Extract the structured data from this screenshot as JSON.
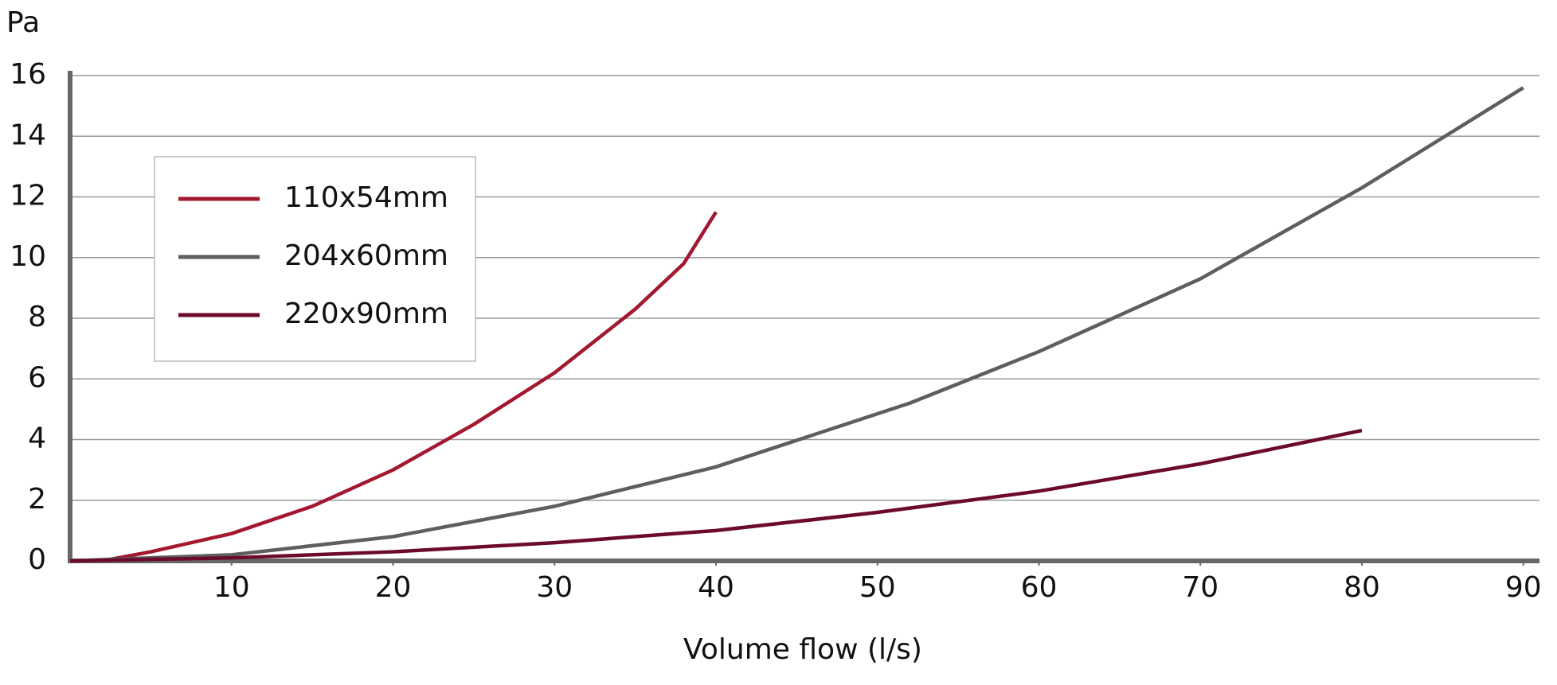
{
  "chart_data": {
    "type": "line",
    "y_label": "Pa",
    "x_label": "Volume flow (l/s)",
    "xlim": [
      0,
      91
    ],
    "ylim": [
      0,
      16
    ],
    "xticks": [
      10,
      20,
      30,
      40,
      50,
      60,
      70,
      80,
      90
    ],
    "yticks": [
      0,
      2,
      4,
      6,
      8,
      10,
      12,
      14,
      16
    ],
    "grid": true,
    "legend": "upper left",
    "series": [
      {
        "name": "110x54mm",
        "color": "#a3182f",
        "x": [
          2,
          5,
          10,
          15,
          20,
          25,
          30,
          35,
          38,
          40
        ],
        "values": [
          0,
          0.3,
          0.9,
          1.8,
          3.0,
          4.5,
          6.2,
          8.3,
          9.8,
          11.5
        ]
      },
      {
        "name": "204x60mm",
        "color": "#5e5e5e",
        "x": [
          0,
          10,
          20,
          30,
          40,
          52,
          60,
          70,
          80,
          90
        ],
        "values": [
          0,
          0.2,
          0.8,
          1.8,
          3.1,
          5.2,
          6.9,
          9.3,
          12.3,
          15.6
        ]
      },
      {
        "name": "220x90mm",
        "color": "#6b0a2e",
        "x": [
          0,
          10,
          20,
          30,
          40,
          50,
          60,
          70,
          80
        ],
        "values": [
          0,
          0.1,
          0.3,
          0.6,
          1.0,
          1.6,
          2.3,
          3.2,
          4.3
        ]
      }
    ]
  }
}
